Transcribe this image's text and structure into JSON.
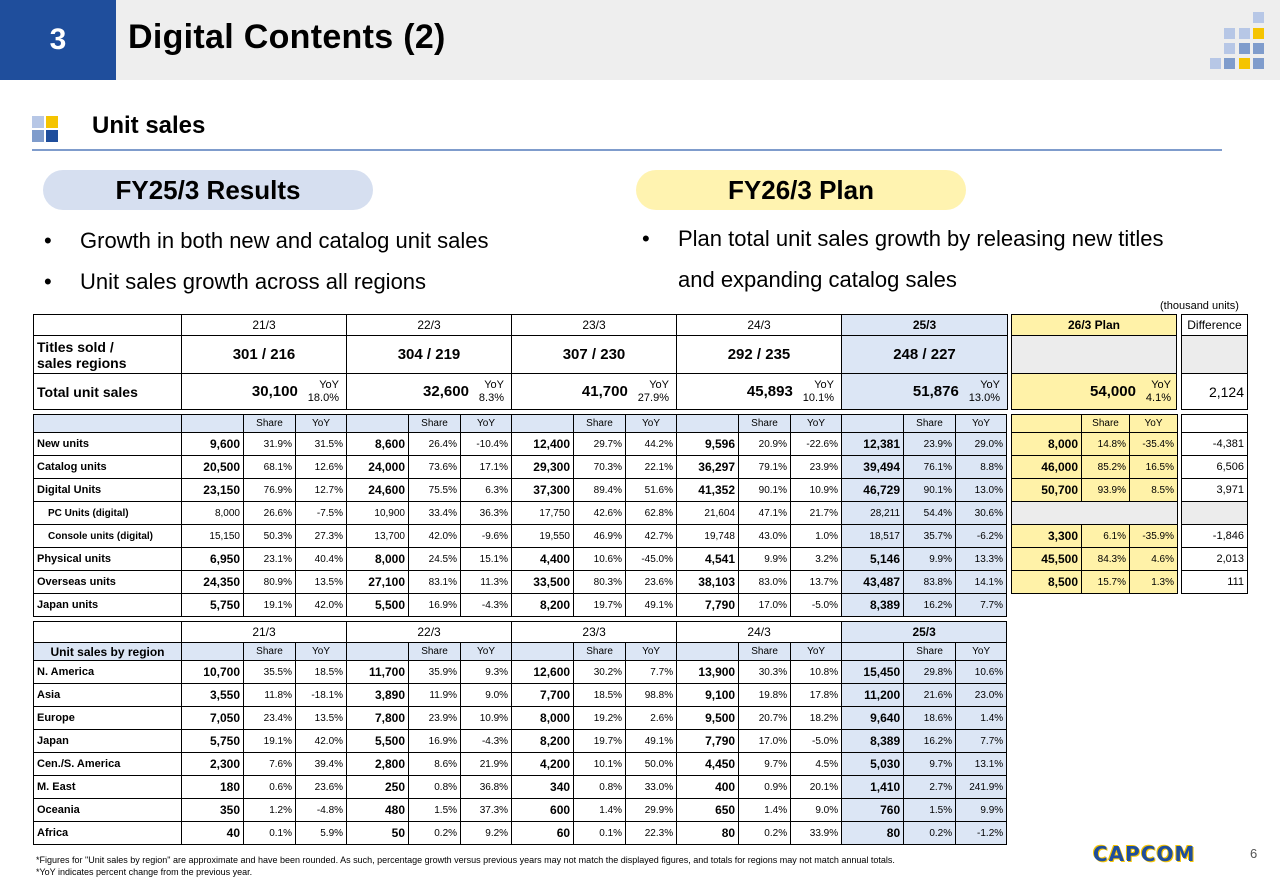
{
  "header": {
    "number": "3",
    "title": "Digital Contents (2)"
  },
  "section": {
    "title": "Unit sales"
  },
  "results": {
    "pill": "FY25/3 Results",
    "bullets": [
      "Growth in both new and catalog unit sales",
      "Unit sales growth across all regions"
    ]
  },
  "plan": {
    "pill": "FY26/3 Plan",
    "bullets": [
      "Plan total unit sales growth by releasing new titles",
      "and expanding catalog sales"
    ]
  },
  "unit_note": "(thousand units)",
  "top": {
    "years": [
      "21/3",
      "22/3",
      "23/3",
      "24/3",
      "25/3"
    ],
    "plan_label": "26/3  Plan",
    "difference_label": "Difference",
    "titles_label": "Titles sold /\nsales regions",
    "titles": [
      "301   /   216",
      "304   /   219",
      "307   /   230",
      "292   /   235",
      "248   /   227"
    ],
    "total_label": "Total unit sales",
    "yoy_label": "YoY",
    "totals": [
      {
        "value": "30,100",
        "yoy": "18.0%"
      },
      {
        "value": "32,600",
        "yoy": "8.3%"
      },
      {
        "value": "41,700",
        "yoy": "27.9%"
      },
      {
        "value": "45,893",
        "yoy": "10.1%"
      },
      {
        "value": "51,876",
        "yoy": "13.0%"
      }
    ],
    "plan_total": {
      "value": "54,000",
      "yoy": "4.1%"
    },
    "diff_total": "2,124"
  },
  "share_label": "Share",
  "main_rows": [
    {
      "label": "New units",
      "cells": [
        [
          "9,600",
          "31.9%",
          "31.5%"
        ],
        [
          "8,600",
          "26.4%",
          "-10.4%"
        ],
        [
          "12,400",
          "29.7%",
          "44.2%"
        ],
        [
          "9,596",
          "20.9%",
          "-22.6%"
        ],
        [
          "12,381",
          "23.9%",
          "29.0%"
        ]
      ],
      "plan": [
        "8,000",
        "14.8%",
        "-35.4%"
      ],
      "diff": "-4,381"
    },
    {
      "label": "Catalog units",
      "cells": [
        [
          "20,500",
          "68.1%",
          "12.6%"
        ],
        [
          "24,000",
          "73.6%",
          "17.1%"
        ],
        [
          "29,300",
          "70.3%",
          "22.1%"
        ],
        [
          "36,297",
          "79.1%",
          "23.9%"
        ],
        [
          "39,494",
          "76.1%",
          "8.8%"
        ]
      ],
      "plan": [
        "46,000",
        "85.2%",
        "16.5%"
      ],
      "diff": "6,506"
    },
    {
      "label": "Digital Units",
      "cells": [
        [
          "23,150",
          "76.9%",
          "12.7%"
        ],
        [
          "24,600",
          "75.5%",
          "6.3%"
        ],
        [
          "37,300",
          "89.4%",
          "51.6%"
        ],
        [
          "41,352",
          "90.1%",
          "10.9%"
        ],
        [
          "46,729",
          "90.1%",
          "13.0%"
        ]
      ],
      "plan": [
        "50,700",
        "93.9%",
        "8.5%"
      ],
      "diff": "3,971"
    },
    {
      "label": "PC Units (digital)",
      "sub": true,
      "cells": [
        [
          "8,000",
          "26.6%",
          "-7.5%"
        ],
        [
          "10,900",
          "33.4%",
          "36.3%"
        ],
        [
          "17,750",
          "42.6%",
          "62.8%"
        ],
        [
          "21,604",
          "47.1%",
          "21.7%"
        ],
        [
          "28,211",
          "54.4%",
          "30.6%"
        ]
      ]
    },
    {
      "label": "Console units (digital)",
      "sub": true,
      "cells": [
        [
          "15,150",
          "50.3%",
          "27.3%"
        ],
        [
          "13,700",
          "42.0%",
          "-9.6%"
        ],
        [
          "19,550",
          "46.9%",
          "42.7%"
        ],
        [
          "19,748",
          "43.0%",
          "1.0%"
        ],
        [
          "18,517",
          "35.7%",
          "-6.2%"
        ]
      ]
    },
    {
      "label": "Physical units",
      "cells": [
        [
          "6,950",
          "23.1%",
          "40.4%"
        ],
        [
          "8,000",
          "24.5%",
          "15.1%"
        ],
        [
          "4,400",
          "10.6%",
          "-45.0%"
        ],
        [
          "4,541",
          "9.9%",
          "3.2%"
        ],
        [
          "5,146",
          "9.9%",
          "13.3%"
        ]
      ],
      "plan": [
        "3,300",
        "6.1%",
        "-35.9%"
      ],
      "diff": "-1,846"
    },
    {
      "label": "Overseas units",
      "cells": [
        [
          "24,350",
          "80.9%",
          "13.5%"
        ],
        [
          "27,100",
          "83.1%",
          "11.3%"
        ],
        [
          "33,500",
          "80.3%",
          "23.6%"
        ],
        [
          "38,103",
          "83.0%",
          "13.7%"
        ],
        [
          "43,487",
          "83.8%",
          "14.1%"
        ]
      ],
      "plan": [
        "45,500",
        "84.3%",
        "4.6%"
      ],
      "diff": "2,013"
    },
    {
      "label": "Japan units",
      "cells": [
        [
          "5,750",
          "19.1%",
          "42.0%"
        ],
        [
          "5,500",
          "16.9%",
          "-4.3%"
        ],
        [
          "8,200",
          "19.7%",
          "49.1%"
        ],
        [
          "7,790",
          "17.0%",
          "-5.0%"
        ],
        [
          "8,389",
          "16.2%",
          "7.7%"
        ]
      ],
      "plan": [
        "8,500",
        "15.7%",
        "1.3%"
      ],
      "diff": "111"
    }
  ],
  "region": {
    "label": "Unit sales by region",
    "rows": [
      {
        "label": "N. America",
        "cells": [
          [
            "10,700",
            "35.5%",
            "18.5%"
          ],
          [
            "11,700",
            "35.9%",
            "9.3%"
          ],
          [
            "12,600",
            "30.2%",
            "7.7%"
          ],
          [
            "13,900",
            "30.3%",
            "10.8%"
          ],
          [
            "15,450",
            "29.8%",
            "10.6%"
          ]
        ]
      },
      {
        "label": "Asia",
        "cells": [
          [
            "3,550",
            "11.8%",
            "-18.1%"
          ],
          [
            "3,890",
            "11.9%",
            "9.0%"
          ],
          [
            "7,700",
            "18.5%",
            "98.8%"
          ],
          [
            "9,100",
            "19.8%",
            "17.8%"
          ],
          [
            "11,200",
            "21.6%",
            "23.0%"
          ]
        ]
      },
      {
        "label": "Europe",
        "cells": [
          [
            "7,050",
            "23.4%",
            "13.5%"
          ],
          [
            "7,800",
            "23.9%",
            "10.9%"
          ],
          [
            "8,000",
            "19.2%",
            "2.6%"
          ],
          [
            "9,500",
            "20.7%",
            "18.2%"
          ],
          [
            "9,640",
            "18.6%",
            "1.4%"
          ]
        ]
      },
      {
        "label": "Japan",
        "cells": [
          [
            "5,750",
            "19.1%",
            "42.0%"
          ],
          [
            "5,500",
            "16.9%",
            "-4.3%"
          ],
          [
            "8,200",
            "19.7%",
            "49.1%"
          ],
          [
            "7,790",
            "17.0%",
            "-5.0%"
          ],
          [
            "8,389",
            "16.2%",
            "7.7%"
          ]
        ]
      },
      {
        "label": "Cen./S. America",
        "cells": [
          [
            "2,300",
            "7.6%",
            "39.4%"
          ],
          [
            "2,800",
            "8.6%",
            "21.9%"
          ],
          [
            "4,200",
            "10.1%",
            "50.0%"
          ],
          [
            "4,450",
            "9.7%",
            "4.5%"
          ],
          [
            "5,030",
            "9.7%",
            "13.1%"
          ]
        ]
      },
      {
        "label": "M. East",
        "cells": [
          [
            "180",
            "0.6%",
            "23.6%"
          ],
          [
            "250",
            "0.8%",
            "36.8%"
          ],
          [
            "340",
            "0.8%",
            "33.0%"
          ],
          [
            "400",
            "0.9%",
            "20.1%"
          ],
          [
            "1,410",
            "2.7%",
            "241.9%"
          ]
        ]
      },
      {
        "label": "Oceania",
        "cells": [
          [
            "350",
            "1.2%",
            "-4.8%"
          ],
          [
            "480",
            "1.5%",
            "37.3%"
          ],
          [
            "600",
            "1.4%",
            "29.9%"
          ],
          [
            "650",
            "1.4%",
            "9.0%"
          ],
          [
            "760",
            "1.5%",
            "9.9%"
          ]
        ]
      },
      {
        "label": "Africa",
        "cells": [
          [
            "40",
            "0.1%",
            "5.9%"
          ],
          [
            "50",
            "0.2%",
            "9.2%"
          ],
          [
            "60",
            "0.1%",
            "22.3%"
          ],
          [
            "80",
            "0.2%",
            "33.9%"
          ],
          [
            "80",
            "0.2%",
            "-1.2%"
          ]
        ]
      }
    ]
  },
  "footnotes": [
    "*Figures for \"Unit sales by region\" are approximate and have been rounded. As such, percentage growth versus previous years may not match the displayed figures, and totals for regions may not match annual totals.",
    "*YoY indicates percent change from the previous year."
  ],
  "logo": "CAPCOM",
  "page_number": "6",
  "colors": {
    "brand_blue": "#1f4e9c",
    "results_fill": "#dce6f5",
    "plan_fill": "#fff2a8"
  }
}
